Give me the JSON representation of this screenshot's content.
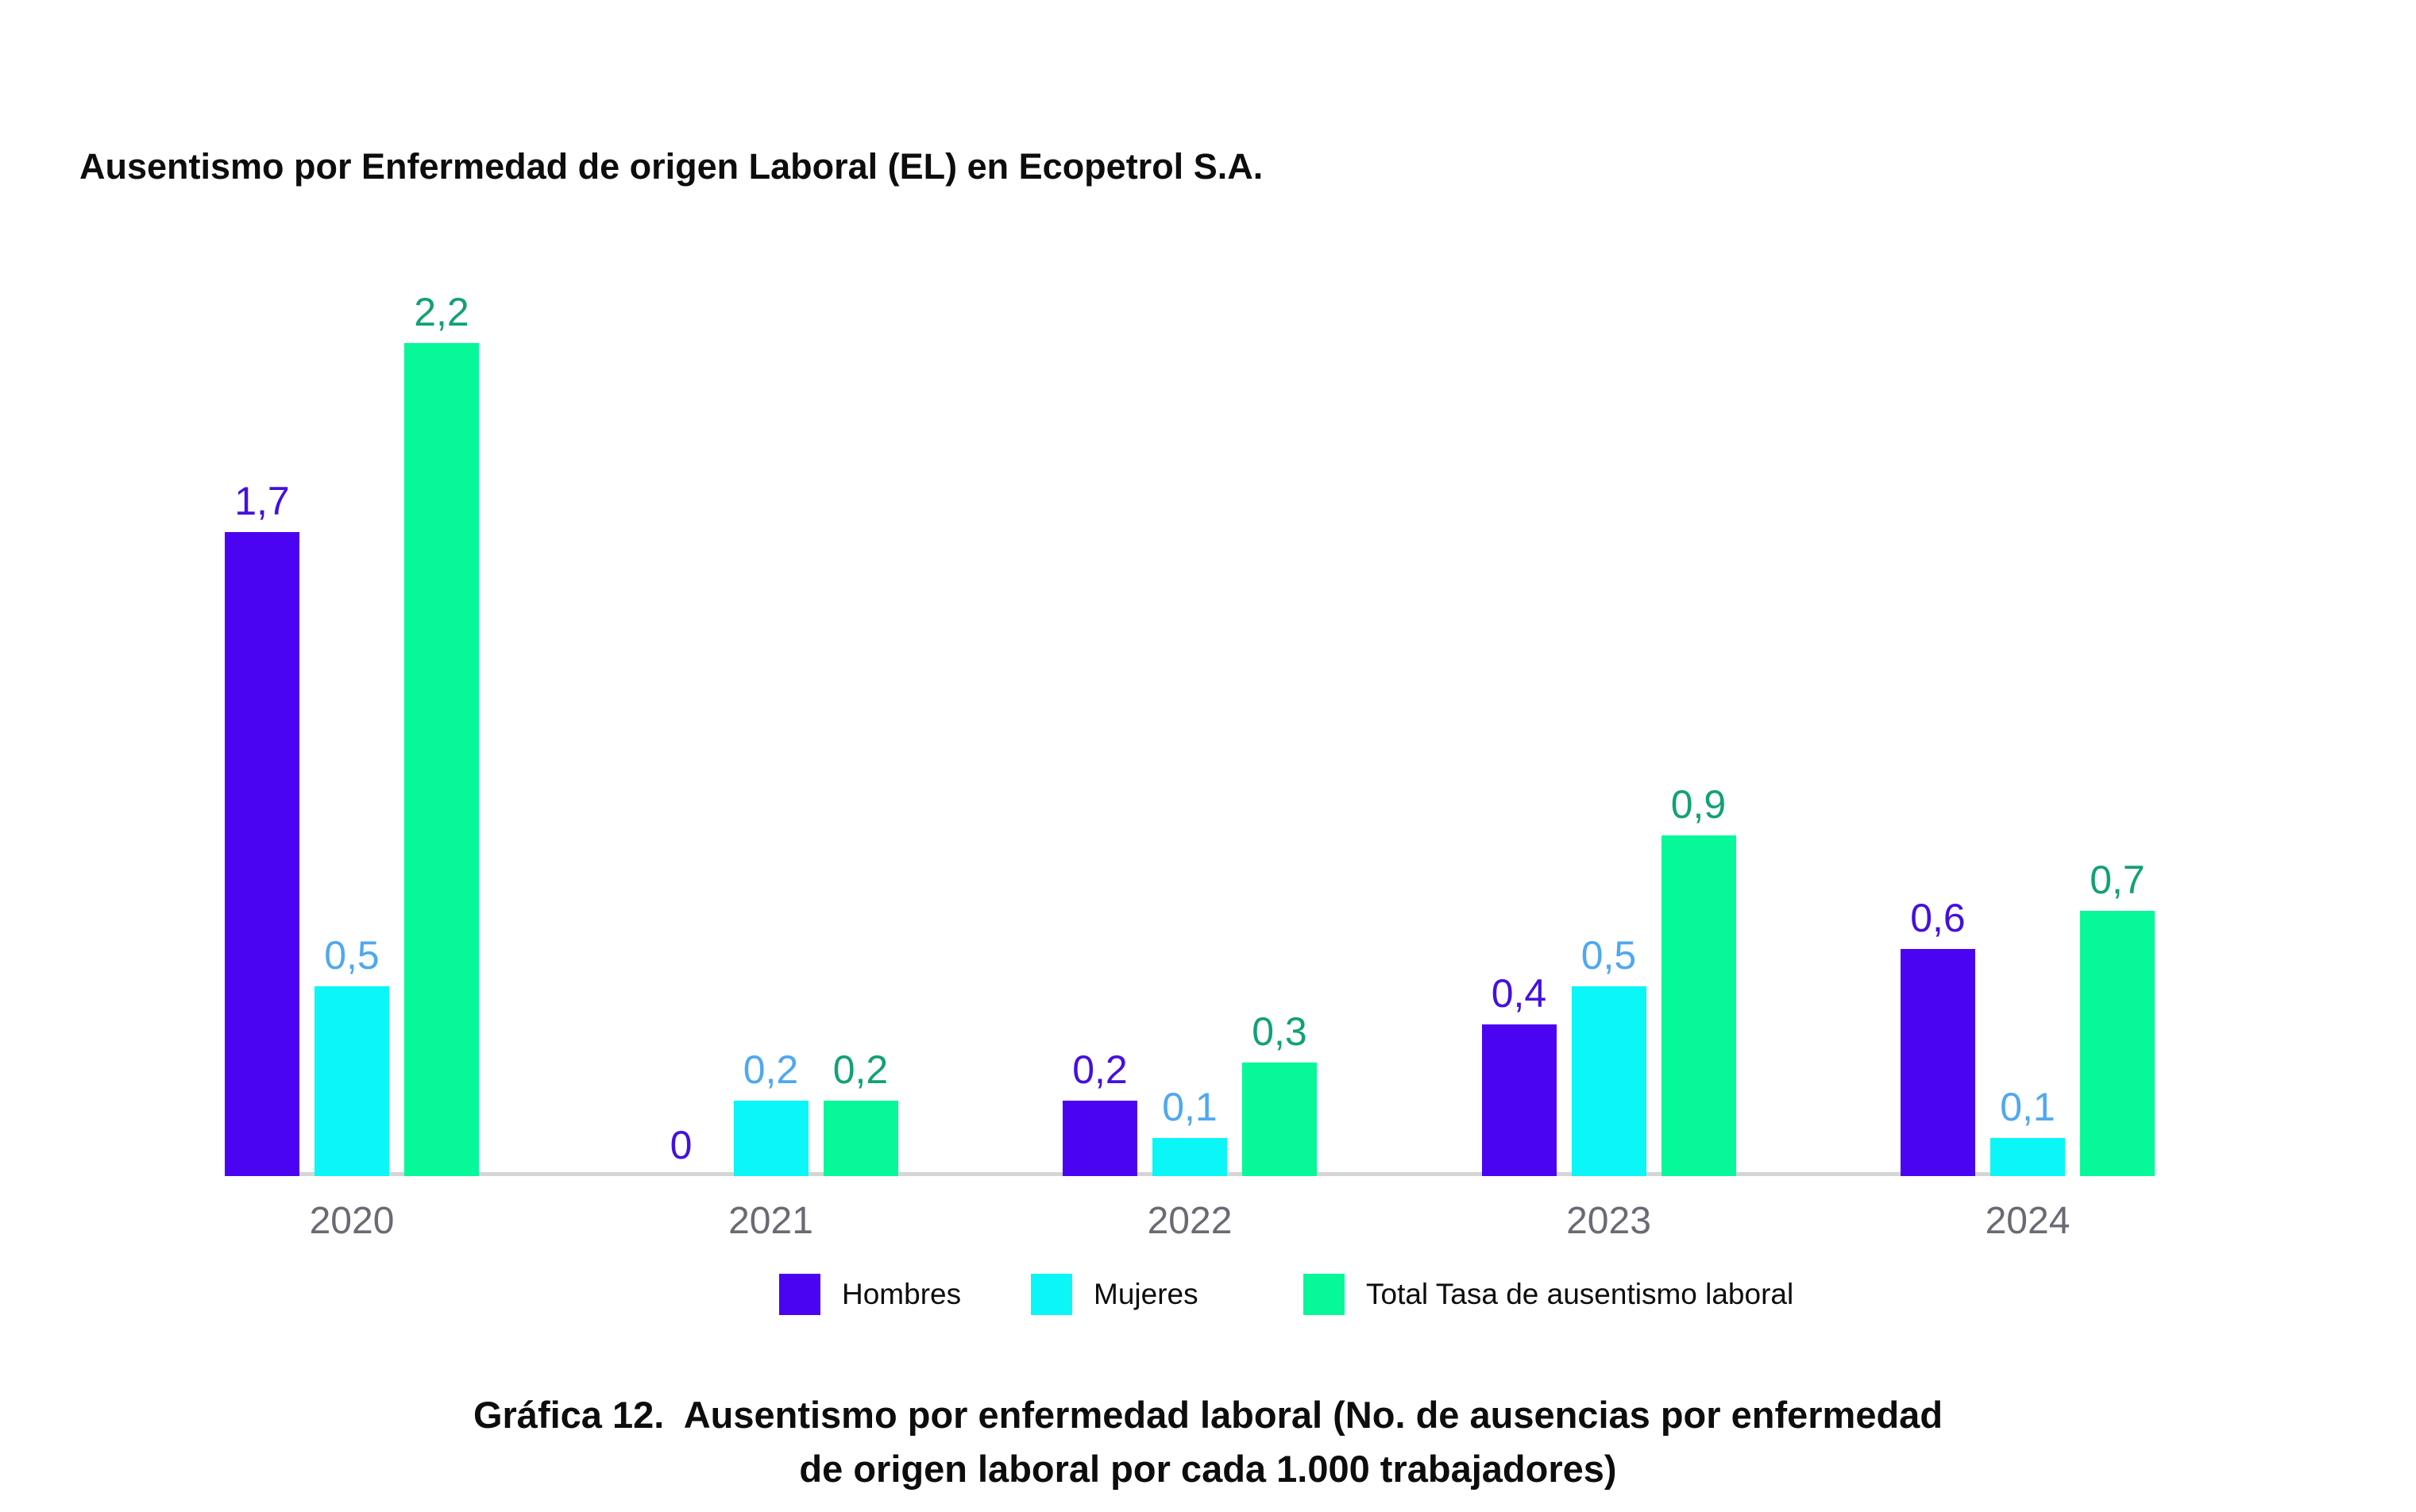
{
  "title": "Ausentismo por Enfermedad de origen Laboral (EL) en Ecopetrol S.A.",
  "caption": {
    "line1": "Gráfica 12.  Ausentismo por enfermedad laboral (No. de ausencias por enfermedad",
    "line2": "de origen laboral por cada 1.000 trabajadores)"
  },
  "colors": {
    "background": "#ffffff",
    "axis_line": "#d5d5d5",
    "year_label": "#6a6a74",
    "text": "#0d0d0d"
  },
  "chart_data": {
    "type": "bar",
    "title": "Ausentismo por Enfermedad de origen Laboral (EL) en Ecopetrol S.A.",
    "categories": [
      "2020",
      "2021",
      "2022",
      "2023",
      "2024"
    ],
    "series": [
      {
        "name": "Hombres",
        "color": "#4b04f2",
        "label_color": "#4410e0",
        "values": [
          1.7,
          0,
          0.2,
          0.4,
          0.6
        ],
        "labels": [
          "1,7",
          "0",
          "0,2",
          "0,4",
          "0,6"
        ]
      },
      {
        "name": "Mujeres",
        "color": "#0bf6f6",
        "label_color": "#4fa8f0",
        "values": [
          0.5,
          0.2,
          0.1,
          0.5,
          0.1
        ],
        "labels": [
          "0,5",
          "0,2",
          "0,1",
          "0,5",
          "0,1"
        ]
      },
      {
        "name": "Total Tasa de ausentismo laboral",
        "color": "#06f898",
        "label_color": "#12a176",
        "values": [
          2.2,
          0.2,
          0.3,
          0.9,
          0.7
        ],
        "labels": [
          "2,2",
          "0,2",
          "0,3",
          "0,9",
          "0,7"
        ]
      }
    ],
    "ylim": [
      0,
      2.2
    ],
    "xlabel": "",
    "ylabel": "",
    "grid": false,
    "y_axis_visible": false,
    "value_labels": true,
    "decimal_separator": ",",
    "legend_position": "bottom"
  }
}
